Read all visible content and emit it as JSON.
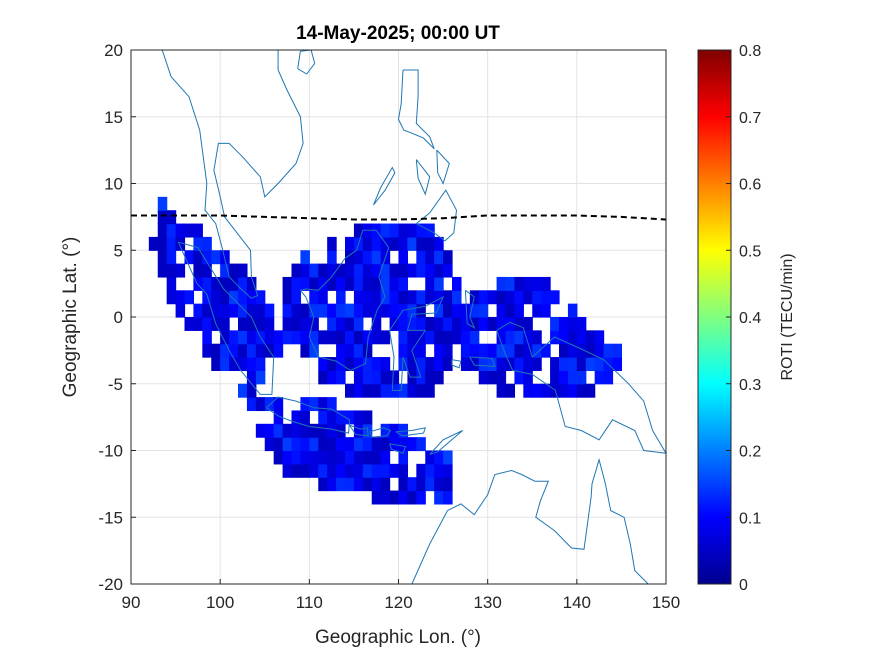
{
  "chart_data": {
    "type": "heatmap",
    "title": "14-May-2025; 00:00 UT",
    "xlabel": "Geographic Lon. (°)",
    "ylabel": "Geographic Lat. (°)",
    "xlim": [
      90,
      150
    ],
    "ylim": [
      -20,
      20
    ],
    "xticks": [
      "90",
      "100",
      "110",
      "120",
      "130",
      "140",
      "150"
    ],
    "yticks": [
      "20",
      "15",
      "10",
      "5",
      "0",
      "-5",
      "-10",
      "-15",
      "-20"
    ],
    "grid": true,
    "colorbar": {
      "label": "ROTI (TECU/min)",
      "colormap": "jet",
      "range": [
        0,
        0.8
      ],
      "ticks": [
        "0.8",
        "0.7",
        "0.6",
        "0.5",
        "0.4",
        "0.3",
        "0.2",
        "0.1",
        "0"
      ]
    },
    "roti_range_observed": [
      0.05,
      0.15
    ],
    "magnetic_equator_line": {
      "style": "black-dashed",
      "points": [
        [
          90,
          7.6
        ],
        [
          95,
          7.6
        ],
        [
          100,
          7.6
        ],
        [
          105,
          7.5
        ],
        [
          110,
          7.4
        ],
        [
          115,
          7.3
        ],
        [
          120,
          7.3
        ],
        [
          125,
          7.4
        ],
        [
          130,
          7.6
        ],
        [
          135,
          7.6
        ],
        [
          140,
          7.6
        ],
        [
          145,
          7.5
        ],
        [
          150,
          7.3
        ]
      ]
    },
    "coastline_color": "#1f77b4",
    "coverage_regions": [
      {
        "name": "Sumatra",
        "polygon": [
          [
            93,
            9.3
          ],
          [
            96,
            7.5
          ],
          [
            101,
            5
          ],
          [
            105,
            2
          ],
          [
            108,
            -1
          ],
          [
            106,
            -5
          ],
          [
            103,
            -6
          ],
          [
            100,
            -4
          ],
          [
            97,
            -1
          ],
          [
            94.5,
            1.5
          ],
          [
            92.5,
            5.5
          ]
        ]
      },
      {
        "name": "Java",
        "polygon": [
          [
            103,
            -6
          ],
          [
            110,
            -6
          ],
          [
            116,
            -7
          ],
          [
            120,
            -8
          ],
          [
            126,
            -10
          ],
          [
            126,
            -13.5
          ],
          [
            117,
            -13.5
          ],
          [
            108,
            -12
          ],
          [
            104,
            -8.5
          ]
        ]
      },
      {
        "name": "Borneo-Sulawesi",
        "polygon": [
          [
            107,
            2.5
          ],
          [
            110,
            5
          ],
          [
            115,
            6.5
          ],
          [
            120,
            7
          ],
          [
            124,
            6.5
          ],
          [
            126,
            4.5
          ],
          [
            127,
            1
          ],
          [
            126,
            -3
          ],
          [
            124,
            -6
          ],
          [
            120,
            -6.5
          ],
          [
            115,
            -6
          ],
          [
            110,
            -4
          ],
          [
            107,
            -1
          ]
        ]
      },
      {
        "name": "Maluku-Papua",
        "polygon": [
          [
            127,
            1
          ],
          [
            132,
            3
          ],
          [
            137,
            2.5
          ],
          [
            140,
            0.5
          ],
          [
            143,
            -1.5
          ],
          [
            145,
            -2.5
          ],
          [
            145,
            -5
          ],
          [
            140,
            -6
          ],
          [
            135,
            -6
          ],
          [
            131,
            -6
          ],
          [
            128,
            -4
          ],
          [
            126,
            -2
          ]
        ]
      }
    ],
    "coastlines": [
      {
        "name": "Indochina-Malay",
        "points": [
          [
            93.5,
            20
          ],
          [
            94.5,
            18
          ],
          [
            96.5,
            16.5
          ],
          [
            97.7,
            14
          ],
          [
            98.5,
            10
          ],
          [
            98.3,
            8
          ],
          [
            99.5,
            7
          ],
          [
            100.3,
            5
          ],
          [
            101,
            3
          ],
          [
            102.5,
            2
          ],
          [
            103.5,
            1.4
          ],
          [
            104.2,
            1.6
          ],
          [
            103.5,
            3
          ],
          [
            103.4,
            5
          ],
          [
            102,
            6.2
          ],
          [
            100.5,
            7.5
          ],
          [
            100,
            9
          ],
          [
            99.3,
            11
          ],
          [
            99.8,
            13
          ],
          [
            101,
            13
          ],
          [
            102.5,
            12
          ],
          [
            104.5,
            10.5
          ],
          [
            105,
            9
          ],
          [
            106.5,
            10
          ],
          [
            108.5,
            11.5
          ],
          [
            109.3,
            13
          ],
          [
            109,
            15
          ],
          [
            107.5,
            17
          ],
          [
            106.5,
            18.5
          ],
          [
            106.5,
            20
          ]
        ]
      },
      {
        "name": "Hainan",
        "points": [
          [
            108.7,
            18.6
          ],
          [
            109.7,
            18.2
          ],
          [
            110.6,
            19
          ],
          [
            110.2,
            20
          ],
          [
            109,
            19.9
          ],
          [
            108.7,
            18.6
          ]
        ]
      },
      {
        "name": "Luzon",
        "points": [
          [
            120.5,
            18.5
          ],
          [
            120.3,
            16
          ],
          [
            120,
            14.8
          ],
          [
            120.6,
            14
          ],
          [
            121.4,
            13.8
          ],
          [
            122.8,
            13.4
          ],
          [
            124,
            12.6
          ],
          [
            123.5,
            13.5
          ],
          [
            122,
            14.5
          ],
          [
            122.2,
            16.5
          ],
          [
            122.2,
            18.5
          ],
          [
            120.5,
            18.5
          ]
        ]
      },
      {
        "name": "Visayas",
        "points": [
          [
            122,
            11.8
          ],
          [
            123.5,
            10.5
          ],
          [
            123,
            9.2
          ],
          [
            122.2,
            10.4
          ],
          [
            122,
            11.8
          ]
        ]
      },
      {
        "name": "Samar-Leyte",
        "points": [
          [
            124.3,
            12.5
          ],
          [
            125.7,
            11.5
          ],
          [
            125,
            10
          ],
          [
            124.4,
            10.8
          ],
          [
            124.3,
            12.5
          ]
        ]
      },
      {
        "name": "Palawan",
        "points": [
          [
            117.2,
            8.4
          ],
          [
            118.5,
            9.5
          ],
          [
            119.6,
            10.8
          ],
          [
            119.3,
            11.2
          ],
          [
            118,
            9.7
          ],
          [
            117.2,
            8.4
          ]
        ]
      },
      {
        "name": "Mindanao",
        "points": [
          [
            122,
            7
          ],
          [
            123.5,
            7.8
          ],
          [
            125.3,
            9.5
          ],
          [
            126.5,
            8
          ],
          [
            126.2,
            6.3
          ],
          [
            125.2,
            5.7
          ],
          [
            124,
            6.3
          ],
          [
            122,
            7
          ]
        ]
      },
      {
        "name": "Borneo",
        "points": [
          [
            109,
            2
          ],
          [
            109.6,
            1.5
          ],
          [
            110.5,
            0
          ],
          [
            110,
            -1.5
          ],
          [
            111,
            -3
          ],
          [
            113,
            -3.3
          ],
          [
            114.6,
            -4
          ],
          [
            116.3,
            -3.5
          ],
          [
            116.6,
            -1.5
          ],
          [
            117.6,
            0.5
          ],
          [
            118.5,
            1.5
          ],
          [
            117.8,
            3
          ],
          [
            118.9,
            5.2
          ],
          [
            117.5,
            6.5
          ],
          [
            116,
            6.5
          ],
          [
            115.3,
            5
          ],
          [
            114,
            4.4
          ],
          [
            112.5,
            3
          ],
          [
            111,
            2
          ],
          [
            109.6,
            2.1
          ],
          [
            109,
            2
          ]
        ]
      },
      {
        "name": "Sulawesi",
        "points": [
          [
            119.3,
            -5.5
          ],
          [
            119.5,
            -3
          ],
          [
            119,
            -1
          ],
          [
            120.5,
            0.5
          ],
          [
            123,
            0.8
          ],
          [
            125,
            1.5
          ],
          [
            124.2,
            0.3
          ],
          [
            121.5,
            0.2
          ],
          [
            121,
            -1
          ],
          [
            123,
            -1
          ],
          [
            121.5,
            -2.5
          ],
          [
            122.5,
            -4.5
          ],
          [
            121.3,
            -4.5
          ],
          [
            120.5,
            -3
          ],
          [
            120.3,
            -5.5
          ],
          [
            119.3,
            -5.5
          ]
        ]
      },
      {
        "name": "Sumatra",
        "points": [
          [
            95.3,
            5.6
          ],
          [
            97.5,
            5.2
          ],
          [
            100.4,
            2.1
          ],
          [
            103.5,
            0
          ],
          [
            104.5,
            -1.5
          ],
          [
            106,
            -3
          ],
          [
            105.8,
            -5.8
          ],
          [
            104.5,
            -5.8
          ],
          [
            102.3,
            -4
          ],
          [
            101,
            -2.5
          ],
          [
            99.5,
            -0.5
          ],
          [
            98.5,
            1.7
          ],
          [
            97.4,
            2.5
          ],
          [
            95.3,
            5.6
          ]
        ]
      },
      {
        "name": "Java",
        "points": [
          [
            105.2,
            -6.8
          ],
          [
            106.5,
            -6
          ],
          [
            108.5,
            -6.3
          ],
          [
            110.5,
            -6.8
          ],
          [
            112.5,
            -6.9
          ],
          [
            114.5,
            -7.7
          ],
          [
            114.4,
            -8.7
          ],
          [
            112.5,
            -8.4
          ],
          [
            110,
            -8.2
          ],
          [
            108,
            -7.8
          ],
          [
            106.5,
            -7.4
          ],
          [
            105.2,
            -6.8
          ]
        ]
      },
      {
        "name": "Bali-Lombok",
        "points": [
          [
            114.5,
            -8.1
          ],
          [
            115.7,
            -8.4
          ],
          [
            116.5,
            -8.3
          ],
          [
            116.6,
            -8.9
          ],
          [
            115.2,
            -8.8
          ],
          [
            114.5,
            -8.1
          ]
        ]
      },
      {
        "name": "Sumbawa",
        "points": [
          [
            116.8,
            -8.6
          ],
          [
            118.3,
            -8.3
          ],
          [
            119.1,
            -8.5
          ],
          [
            118.7,
            -8.9
          ],
          [
            117,
            -9
          ],
          [
            116.8,
            -8.6
          ]
        ]
      },
      {
        "name": "Flores",
        "points": [
          [
            119.7,
            -8.6
          ],
          [
            121.5,
            -8.5
          ],
          [
            123,
            -8.3
          ],
          [
            122.8,
            -8.7
          ],
          [
            120.5,
            -8.9
          ],
          [
            119.7,
            -8.6
          ]
        ]
      },
      {
        "name": "Sumba",
        "points": [
          [
            119,
            -9.5
          ],
          [
            120.8,
            -9.7
          ],
          [
            120.5,
            -10.2
          ],
          [
            119.2,
            -9.9
          ],
          [
            119,
            -9.5
          ]
        ]
      },
      {
        "name": "Timor",
        "points": [
          [
            123.5,
            -10.3
          ],
          [
            125,
            -9.2
          ],
          [
            127.2,
            -8.5
          ],
          [
            126.5,
            -8.9
          ],
          [
            124.4,
            -10.1
          ],
          [
            123.5,
            -10.3
          ]
        ]
      },
      {
        "name": "Halmahera",
        "points": [
          [
            127.5,
            2
          ],
          [
            128.5,
            1.5
          ],
          [
            128,
            0
          ],
          [
            128.5,
            -0.8
          ],
          [
            127.7,
            -0.5
          ],
          [
            127.5,
            2
          ]
        ]
      },
      {
        "name": "Seram",
        "points": [
          [
            128,
            -3
          ],
          [
            130.5,
            -3.1
          ],
          [
            130.8,
            -3.7
          ],
          [
            128.5,
            -3.6
          ],
          [
            128,
            -3
          ]
        ]
      },
      {
        "name": "Buru",
        "points": [
          [
            126,
            -3.2
          ],
          [
            127,
            -3.3
          ],
          [
            126.8,
            -3.8
          ],
          [
            126,
            -3.6
          ],
          [
            126,
            -3.2
          ]
        ]
      },
      {
        "name": "New Guinea",
        "points": [
          [
            131,
            -1
          ],
          [
            132.5,
            -0.4
          ],
          [
            134,
            -0.8
          ],
          [
            135,
            -3
          ],
          [
            137.5,
            -1.5
          ],
          [
            140.5,
            -2.4
          ],
          [
            143,
            -3.2
          ],
          [
            145.8,
            -5
          ],
          [
            147.5,
            -6.3
          ],
          [
            148.5,
            -8.5
          ],
          [
            150,
            -10.2
          ],
          [
            147.5,
            -10
          ],
          [
            146.5,
            -8.5
          ],
          [
            144,
            -7.7
          ],
          [
            142.5,
            -9.2
          ],
          [
            140.5,
            -8.5
          ],
          [
            138.7,
            -8.2
          ],
          [
            137.6,
            -5.5
          ],
          [
            135,
            -4.3
          ],
          [
            132.8,
            -4
          ],
          [
            132,
            -2.8
          ],
          [
            131,
            -1
          ]
        ]
      },
      {
        "name": "Australia",
        "points": [
          [
            121.5,
            -20
          ],
          [
            123.5,
            -17
          ],
          [
            125.5,
            -14.5
          ],
          [
            127,
            -14
          ],
          [
            128.5,
            -14.8
          ],
          [
            130,
            -13.3
          ],
          [
            130.8,
            -11.8
          ],
          [
            132.7,
            -11.5
          ],
          [
            133.8,
            -11.8
          ],
          [
            135.3,
            -12.3
          ],
          [
            136.8,
            -12.3
          ],
          [
            135.9,
            -13.8
          ],
          [
            135.4,
            -15
          ],
          [
            137.5,
            -16
          ],
          [
            139.4,
            -17.3
          ],
          [
            140.8,
            -17.4
          ],
          [
            141.6,
            -13.5
          ],
          [
            141.7,
            -12.5
          ],
          [
            142.5,
            -10.7
          ],
          [
            143.2,
            -12.5
          ],
          [
            143.8,
            -14.5
          ],
          [
            145.3,
            -15
          ],
          [
            146,
            -17
          ],
          [
            146.5,
            -19
          ],
          [
            148,
            -20
          ]
        ]
      }
    ]
  }
}
